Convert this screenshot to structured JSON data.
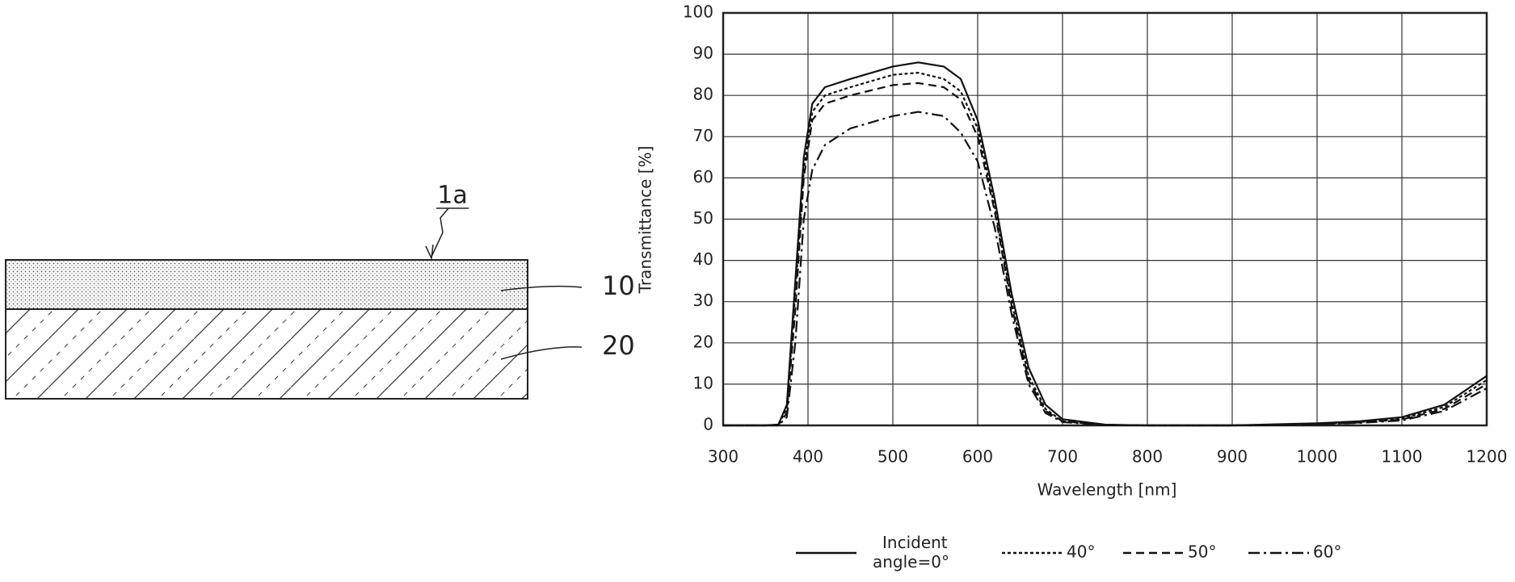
{
  "diagram": {
    "labels": [
      "1a",
      "10",
      "20"
    ]
  },
  "chart_data": {
    "type": "line",
    "x_label": "Wavelength [nm]",
    "y_label": "Transmittance [%]",
    "x": [
      300,
      350,
      365,
      375,
      385,
      395,
      405,
      420,
      450,
      500,
      530,
      560,
      580,
      600,
      620,
      640,
      660,
      680,
      700,
      750,
      800,
      900,
      1000,
      1050,
      1100,
      1150,
      1200
    ],
    "series": [
      {
        "name": "Incident angle=0°",
        "color": "#111",
        "dash": "none",
        "values": [
          0,
          0,
          0.2,
          5,
          35,
          65,
          78,
          82,
          84,
          87,
          88,
          87,
          84,
          74,
          55,
          32,
          14,
          5,
          1.5,
          0.2,
          0,
          0,
          0.5,
          1,
          2,
          5,
          12
        ]
      },
      {
        "name": "40°",
        "color": "#111",
        "dash": "4,3",
        "values": [
          0,
          0,
          0.2,
          4,
          32,
          62,
          76,
          80,
          82,
          85,
          85.5,
          84,
          81,
          72,
          53,
          30,
          12,
          4,
          1,
          0.1,
          0,
          0,
          0.4,
          0.8,
          1.6,
          4.5,
          11
        ]
      },
      {
        "name": "50°",
        "color": "#111",
        "dash": "10,6",
        "values": [
          0,
          0,
          0.1,
          3,
          28,
          60,
          74,
          78,
          80,
          82.5,
          83,
          82,
          79,
          70,
          52,
          29,
          11,
          3.5,
          1,
          0.1,
          0,
          0,
          0.3,
          0.7,
          1.4,
          4,
          10
        ]
      },
      {
        "name": "60°",
        "color": "#111",
        "dash": "14,5,3,5",
        "values": [
          0,
          0,
          0,
          2,
          20,
          50,
          62,
          68,
          72,
          75,
          76,
          75,
          71,
          64,
          48,
          27,
          10,
          3,
          0.8,
          0.1,
          0,
          0,
          0.3,
          0.6,
          1.2,
          3.5,
          9
        ]
      }
    ],
    "xlim": [
      300,
      1200
    ],
    "ylim": [
      0,
      100
    ],
    "xticks": [
      300,
      400,
      500,
      600,
      700,
      800,
      900,
      1000,
      1100,
      1200
    ],
    "yticks": [
      0,
      10,
      20,
      30,
      40,
      50,
      60,
      70,
      80,
      90,
      100
    ],
    "grid": true
  }
}
